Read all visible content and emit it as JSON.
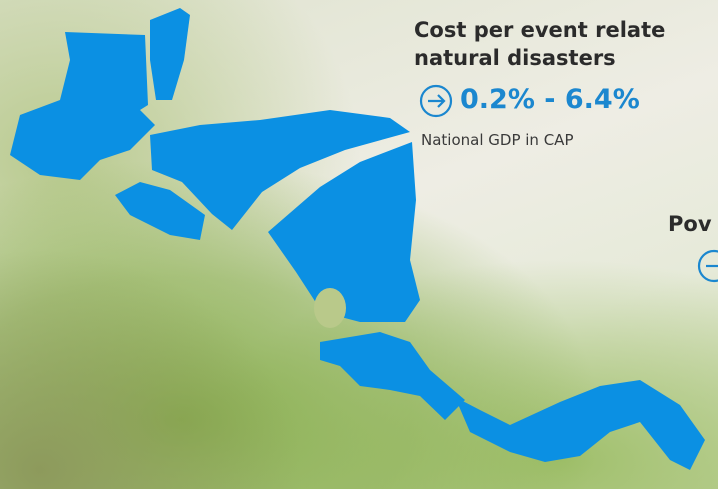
{
  "panel_1": {
    "title_line_1": "Cost per event relate",
    "title_line_2": "natural disasters",
    "value": "0.2% - 6.4%",
    "caption": "National GDP in CAP"
  },
  "panel_2": {
    "title": "Pov"
  }
}
